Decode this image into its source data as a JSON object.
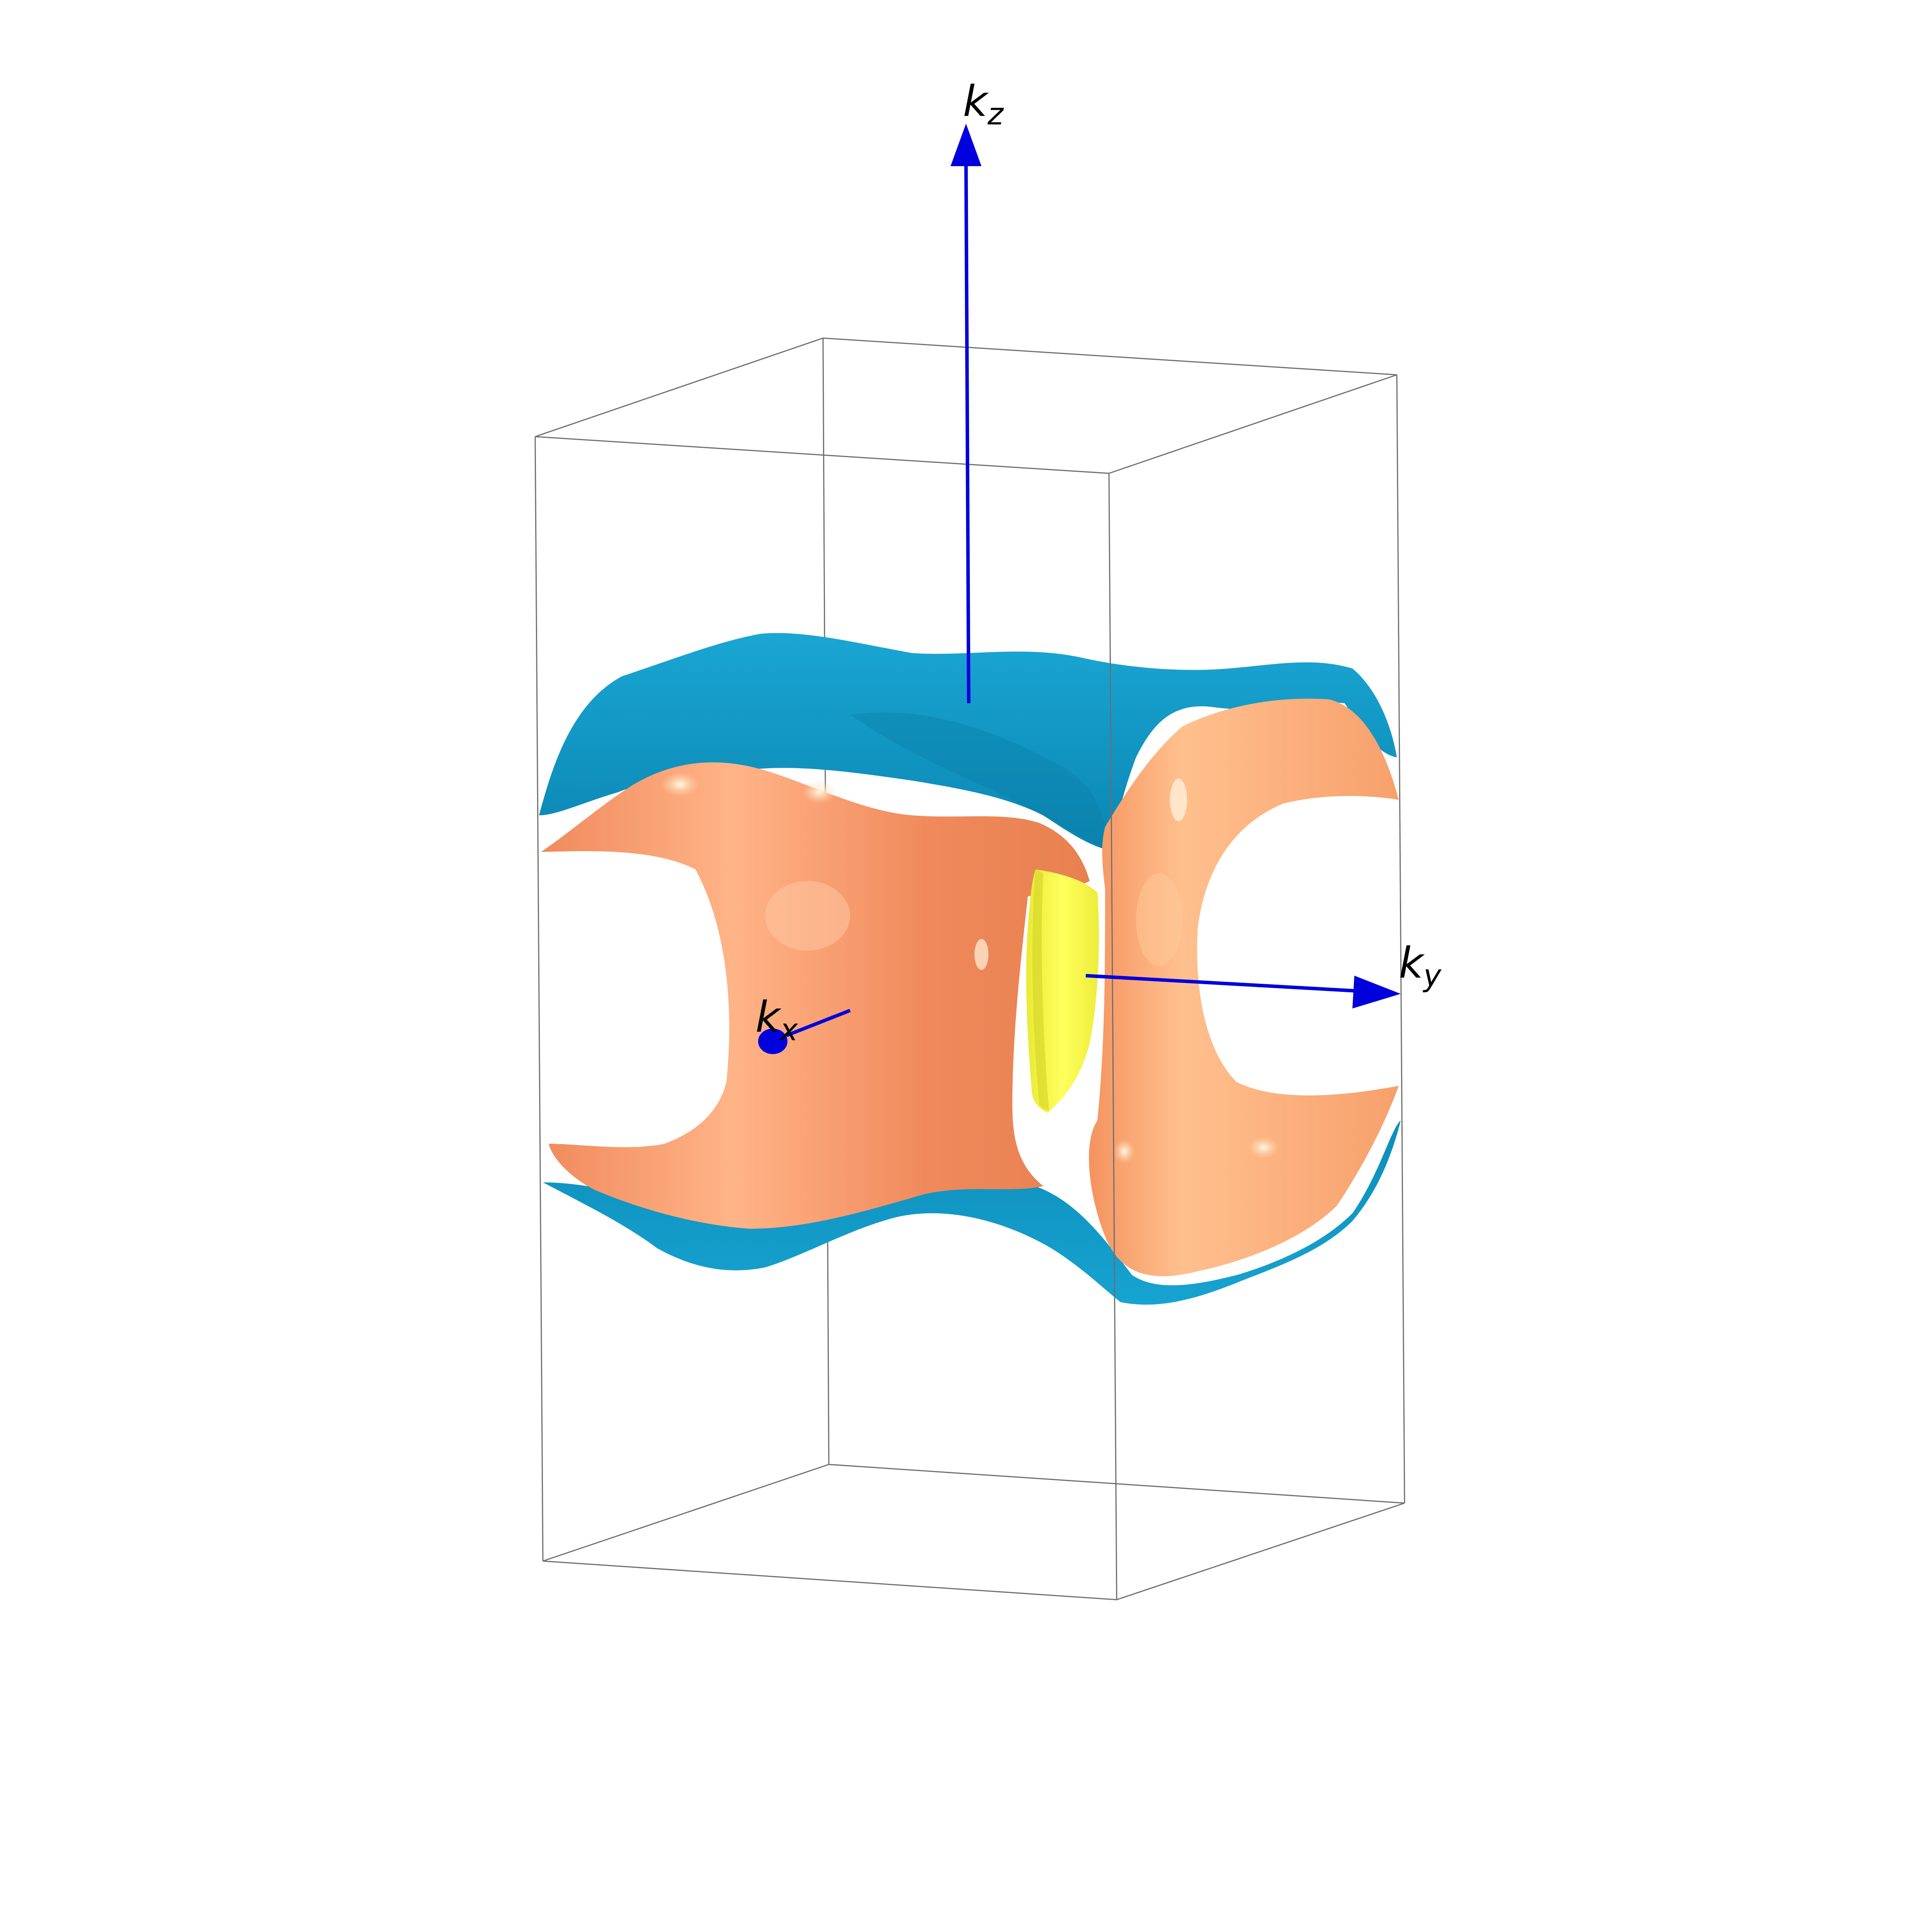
{
  "axes": {
    "kz": {
      "base": "k",
      "subscript": "z"
    },
    "ky": {
      "base": "k",
      "subscript": "y"
    },
    "kx": {
      "base": "k",
      "subscript": "x"
    }
  },
  "colors": {
    "background": "#ffffff",
    "box_edge": "#6e6e6e",
    "axis_arrow": "#0000dd",
    "outer_sheet": "#1399c6",
    "outer_sheet_shade": "#0b7fa8",
    "middle_sheet": "#f59467",
    "middle_sheet_light": "#ffc79a",
    "inner_pocket": "#f4f442",
    "inner_pocket_shade": "#d9d92a"
  },
  "surfaces": [
    {
      "name": "outer-sheet",
      "color": "#1399c6"
    },
    {
      "name": "middle-sheet",
      "color": "#f59467"
    },
    {
      "name": "inner-pocket",
      "color": "#f4f442"
    }
  ]
}
